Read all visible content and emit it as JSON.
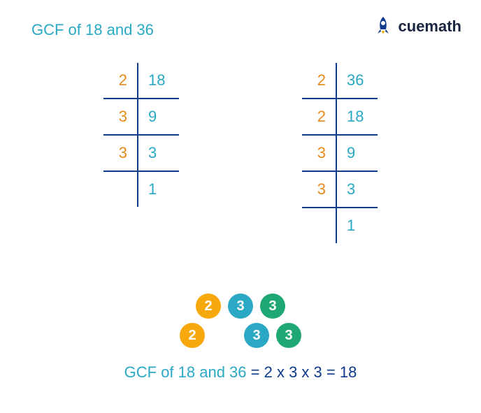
{
  "title": "GCF of 18 and 36",
  "title_color": "#2aa8c4",
  "logo_text": "cuemath",
  "logo_text_color": "#1a2540",
  "rocket_body_color": "#0f3b8c",
  "rocket_flame_color": "#f7a80d",
  "colors": {
    "orange": "#e68a1c",
    "cyan": "#2aa8c4",
    "border": "#0f3b8c",
    "yellow_circle": "#f7a80d",
    "cyan_circle": "#2aa8c4",
    "green_circle": "#1fa874"
  },
  "table_left": {
    "value_color": "#2aa8c4",
    "rows": [
      {
        "factor": "2",
        "value": "18"
      },
      {
        "factor": "3",
        "value": "9"
      },
      {
        "factor": "3",
        "value": "3"
      },
      {
        "factor": "",
        "value": "1"
      }
    ]
  },
  "table_right": {
    "value_color": "#2aa8c4",
    "rows": [
      {
        "factor": "2",
        "value": "36"
      },
      {
        "factor": "2",
        "value": "18"
      },
      {
        "factor": "3",
        "value": "9"
      },
      {
        "factor": "3",
        "value": "3"
      },
      {
        "factor": "",
        "value": "1"
      }
    ]
  },
  "circles": {
    "row1": [
      {
        "label": "2",
        "color": "#f7a80d"
      },
      {
        "label": "3",
        "color": "#2aa8c4"
      },
      {
        "label": "3",
        "color": "#1fa874"
      }
    ],
    "row2": [
      {
        "label": "2",
        "color": "#f7a80d"
      },
      {
        "label": "",
        "color": ""
      },
      {
        "label": "3",
        "color": "#2aa8c4"
      },
      {
        "label": "3",
        "color": "#1fa874"
      }
    ]
  },
  "result": {
    "prefix": "GCF of 18 and 36",
    "prefix_color": "#2aa8c4",
    "eq1": " = ",
    "expr": "2 x 3 x 3",
    "eq2": " = ",
    "answer": "18",
    "expr_color": "#0f3b8c"
  }
}
